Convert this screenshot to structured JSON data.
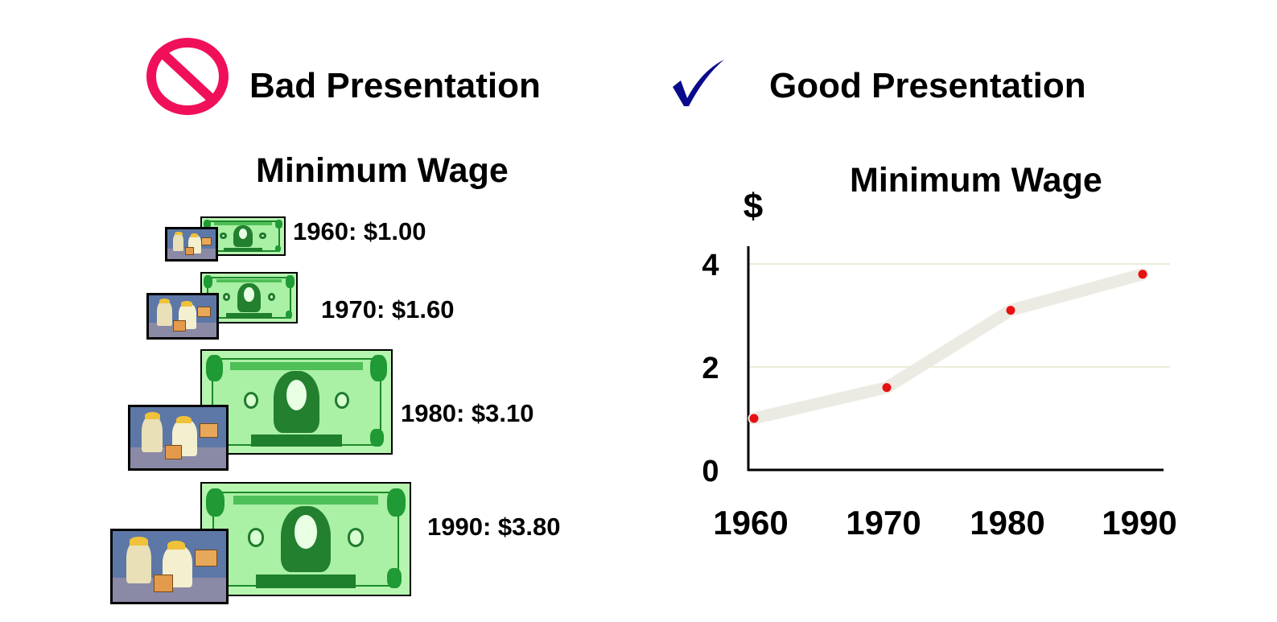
{
  "bad": {
    "heading": "Bad Presentation",
    "chart_title": "Minimum Wage",
    "labels": [
      "1960: $1.00",
      "1970: $1.60",
      "1980: $3.10",
      "1990: $3.80"
    ]
  },
  "good": {
    "heading": "Good Presentation",
    "chart_title": "Minimum Wage"
  },
  "icons": {
    "bad": "prohibited-icon",
    "good": "checkmark-icon"
  },
  "colors": {
    "prohibited": "#f0105a",
    "checkmark": "#0a0a8c",
    "line": "#ecebe3",
    "point": "#e81010",
    "gridline": "#ecebd8"
  },
  "chart_data": {
    "type": "line",
    "title": "Minimum Wage",
    "ylabel": "$",
    "xlabel": "",
    "x": [
      "1960",
      "1970",
      "1980",
      "1990"
    ],
    "values": [
      1.0,
      1.6,
      3.1,
      3.8
    ],
    "ylim": [
      0,
      4
    ],
    "yticks": [
      "0",
      "2",
      "4"
    ],
    "grid": true
  }
}
